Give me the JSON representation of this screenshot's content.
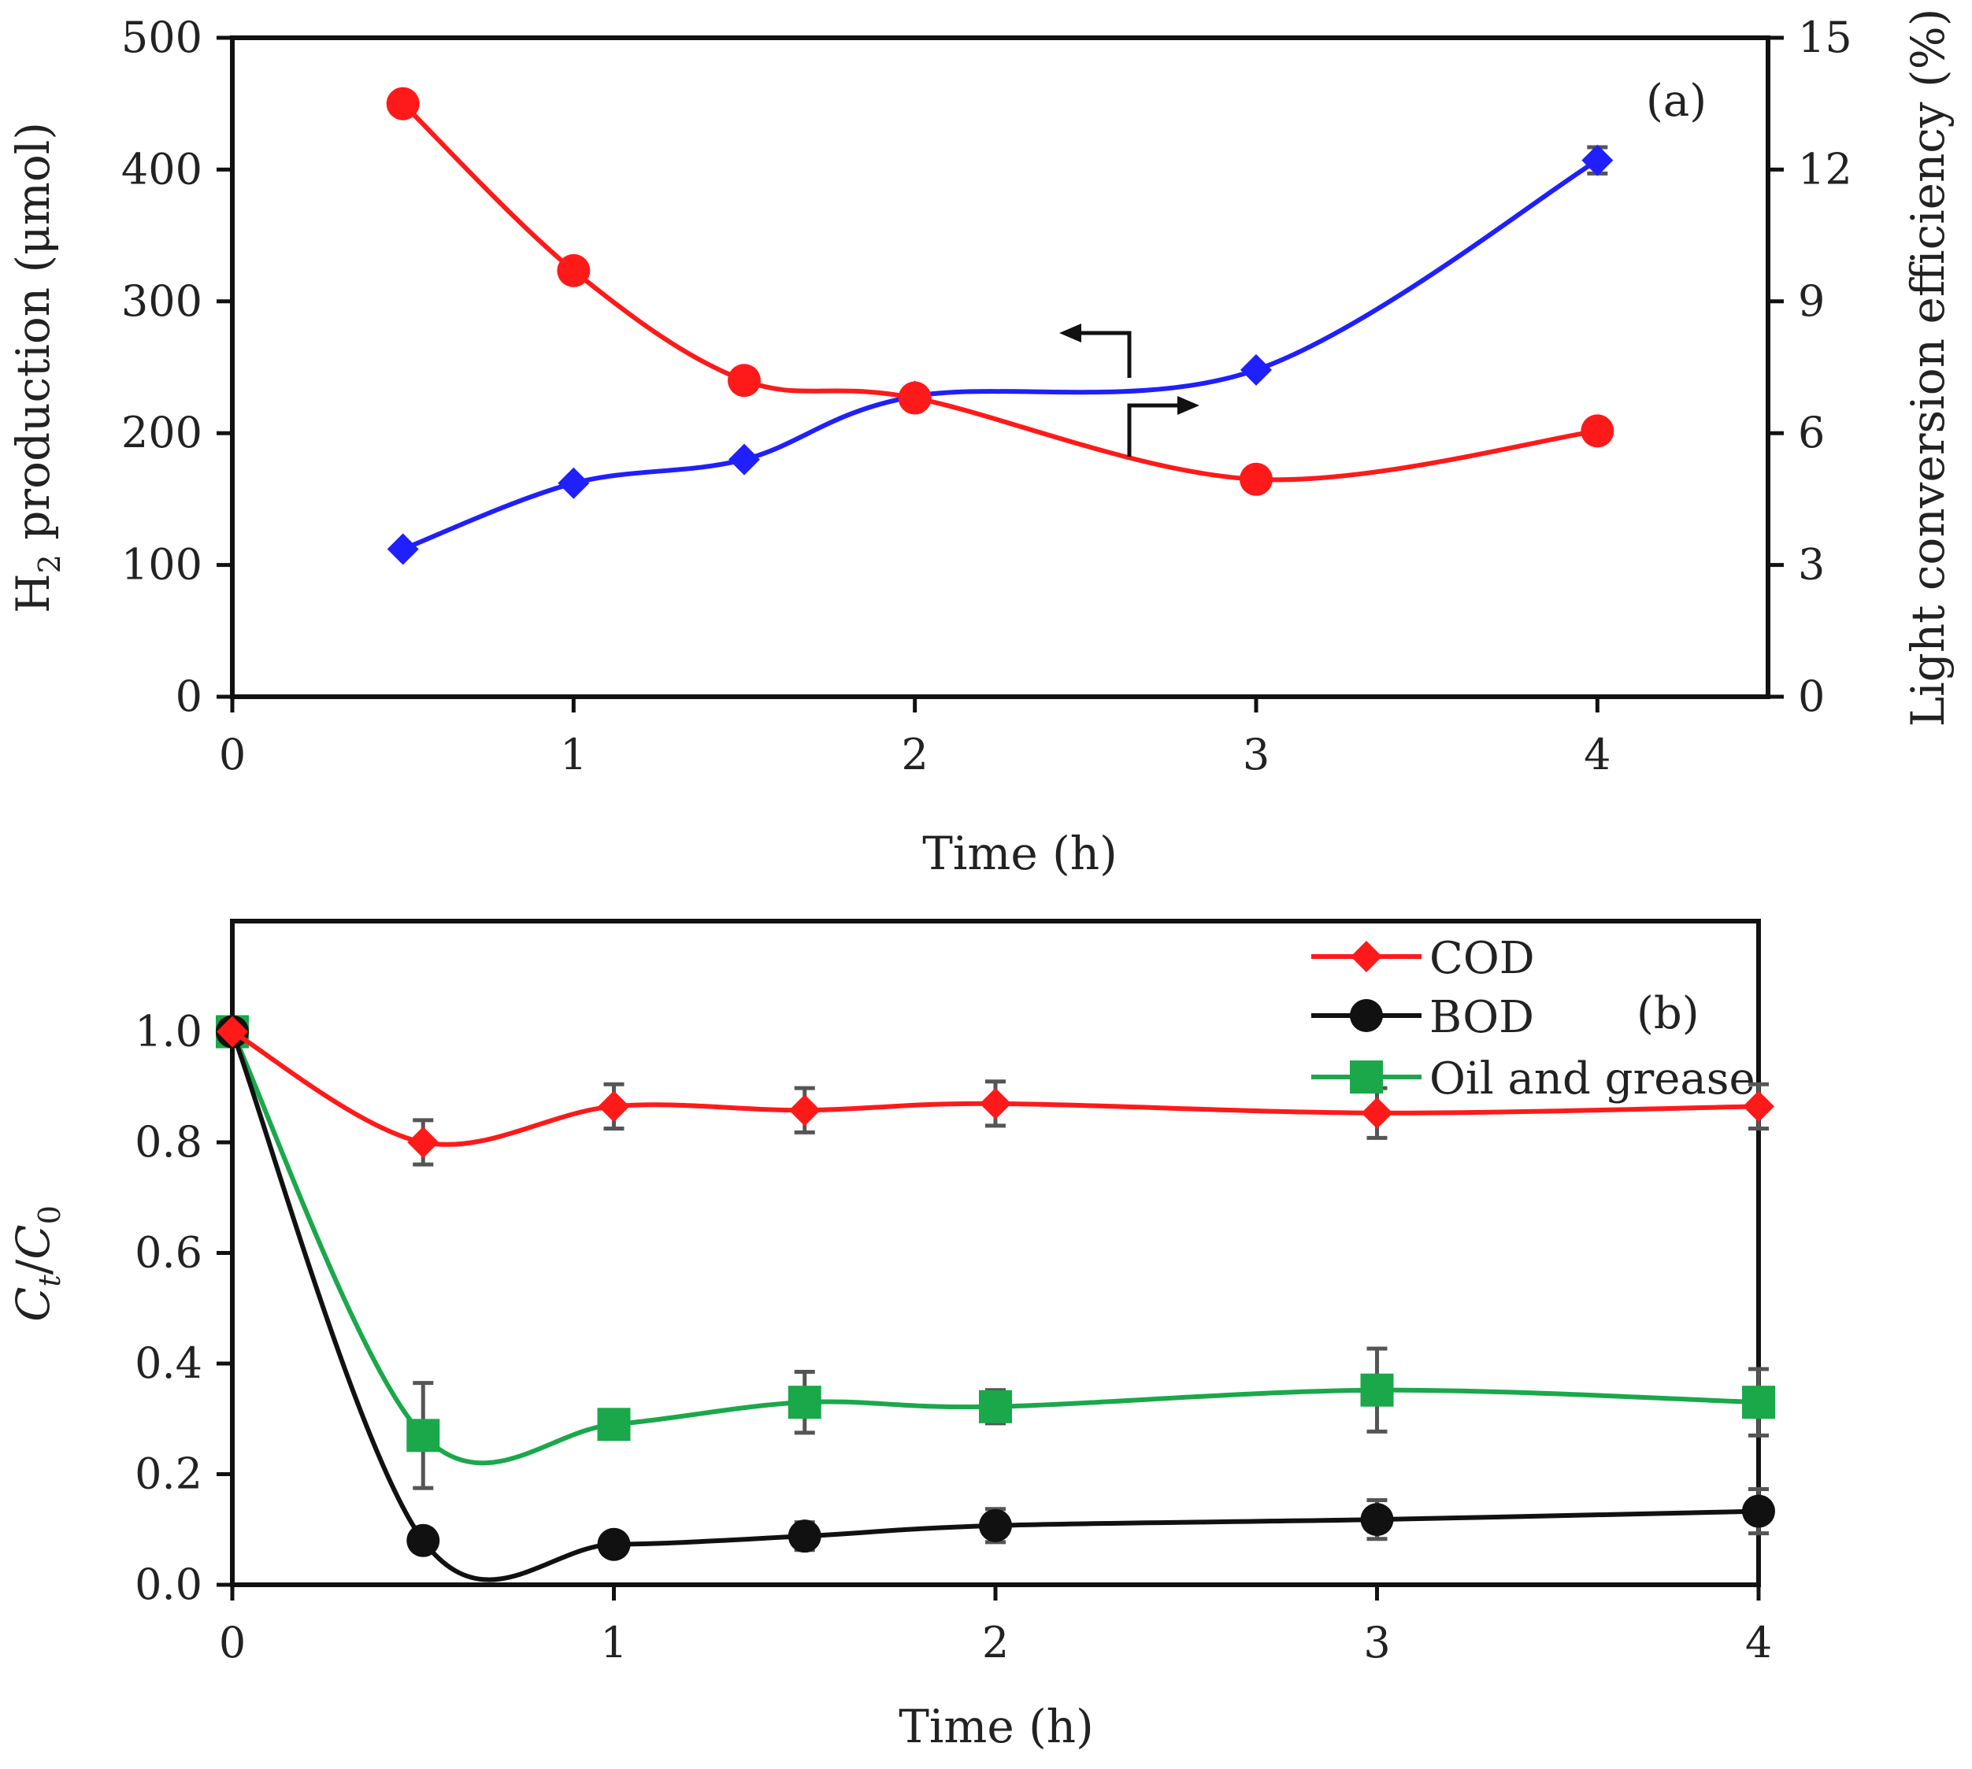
{
  "chart_data": [
    {
      "panel": "(a)",
      "type": "line",
      "xlabel": "Time (h)",
      "ylabel_left": {
        "prefix": "H",
        "sub": "2",
        "suffix": " production (μmol)"
      },
      "ylabel_right": "Light conversion efficiency (%)",
      "xlim": [
        0,
        4.5
      ],
      "ylim_left": [
        0,
        500
      ],
      "ylim_right": [
        0,
        15
      ],
      "xticks": [
        "0",
        "1",
        "2",
        "3",
        "4"
      ],
      "yticks_left": [
        "0",
        "100",
        "200",
        "300",
        "400",
        "500"
      ],
      "yticks_right": [
        "0",
        "3",
        "6",
        "9",
        "12",
        "15"
      ],
      "series": [
        {
          "name": "H2 production",
          "axis": "left",
          "color": "#1f1fff",
          "marker": "diamond",
          "x": [
            0.5,
            1,
            1.5,
            2,
            3,
            4
          ],
          "y": [
            112,
            162,
            180,
            228,
            248,
            407
          ],
          "err": [
            0,
            0,
            0,
            0,
            0,
            10
          ]
        },
        {
          "name": "Light conversion efficiency",
          "axis": "right",
          "color": "#ff1a1a",
          "marker": "circle",
          "x": [
            0.5,
            1,
            1.5,
            2,
            3,
            4
          ],
          "y": [
            13.5,
            9.7,
            7.2,
            6.8,
            4.95,
            6.05
          ],
          "err": [
            0,
            0,
            0,
            0,
            0.25,
            0
          ]
        }
      ]
    },
    {
      "panel": "(b)",
      "type": "line",
      "xlabel": "Time (h)",
      "ylabel": {
        "c1": "C",
        "s1": "t",
        "mid": "/",
        "c2": "C",
        "s2": "0"
      },
      "xlim": [
        0,
        4
      ],
      "ylim": [
        0,
        1.2
      ],
      "xticks": [
        "0",
        "1",
        "2",
        "3",
        "4"
      ],
      "yticks": [
        "0.0",
        "0.2",
        "0.4",
        "0.6",
        "0.8",
        "1.0"
      ],
      "series": [
        {
          "name": "COD",
          "color": "#ff1a1a",
          "marker": "diamond",
          "x": [
            0,
            0.5,
            1,
            1.5,
            2,
            3,
            4
          ],
          "y": [
            1.0,
            0.8,
            0.865,
            0.858,
            0.87,
            0.853,
            0.865
          ],
          "err": [
            0,
            0.04,
            0.04,
            0.04,
            0.04,
            0.045,
            0.04
          ]
        },
        {
          "name": "BOD",
          "color": "#111111",
          "marker": "circle",
          "x": [
            0,
            0.5,
            1,
            1.5,
            2,
            3,
            4
          ],
          "y": [
            1.0,
            0.08,
            0.073,
            0.088,
            0.107,
            0.118,
            0.133
          ],
          "err": [
            0,
            0.02,
            0.02,
            0.025,
            0.03,
            0.035,
            0.04
          ]
        },
        {
          "name": "Oil and grease",
          "color": "#1aa84a",
          "marker": "square",
          "x": [
            0,
            0.5,
            1,
            1.5,
            2,
            3,
            4
          ],
          "y": [
            1.0,
            0.27,
            0.29,
            0.33,
            0.322,
            0.352,
            0.33
          ],
          "err": [
            0,
            0.095,
            0.01,
            0.055,
            0.03,
            0.075,
            0.06
          ]
        }
      ]
    }
  ]
}
